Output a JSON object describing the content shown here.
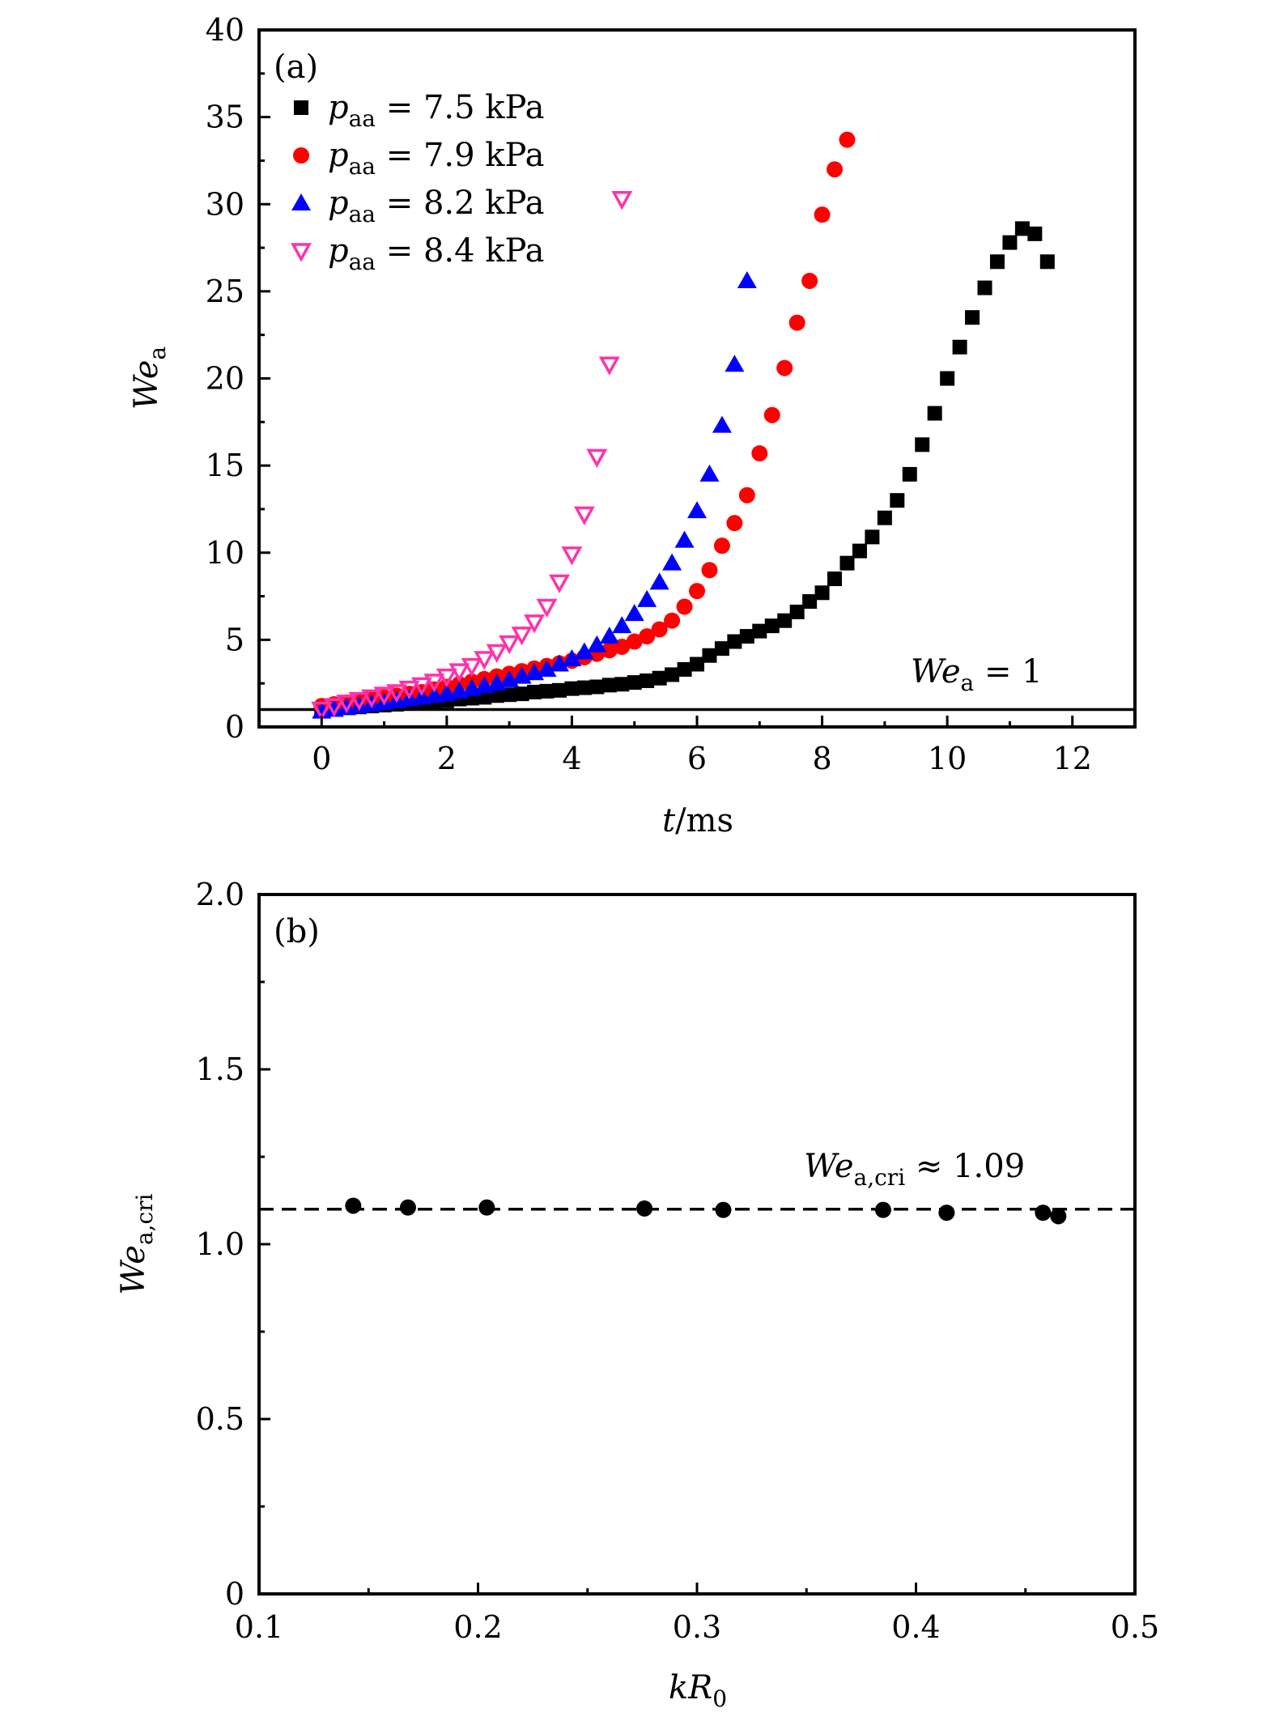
{
  "chart_data": [
    {
      "type": "scatter",
      "panel_label": "(a)",
      "xlabel": {
        "main": "t",
        "rest": "/ms"
      },
      "ylabel": {
        "main": "We",
        "sub": "a"
      },
      "xlim": [
        -1,
        13
      ],
      "ylim": [
        0,
        40
      ],
      "xticks": [
        0,
        2,
        4,
        6,
        8,
        10,
        12
      ],
      "yticks": [
        0,
        5,
        10,
        15,
        20,
        25,
        30,
        35,
        40
      ],
      "legend_position": "top-left",
      "reference_line": {
        "y": 1,
        "label_main": "We",
        "label_sub": "a",
        "label_rest": " = 1"
      },
      "series": [
        {
          "name": "p_aa = 7.5 kPa",
          "sym": "p",
          "sub": "aa",
          "rest": " = 7.5 kPa",
          "marker": "square",
          "color": "#000000",
          "x": [
            0,
            0.2,
            0.4,
            0.6,
            0.8,
            1.0,
            1.2,
            1.4,
            1.6,
            1.8,
            2.0,
            2.2,
            2.4,
            2.6,
            2.8,
            3.0,
            3.2,
            3.4,
            3.6,
            3.8,
            4.0,
            4.2,
            4.4,
            4.6,
            4.8,
            5.0,
            5.2,
            5.4,
            5.6,
            5.8,
            6.0,
            6.2,
            6.4,
            6.6,
            6.8,
            7.0,
            7.2,
            7.4,
            7.6,
            7.8,
            8.0,
            8.2,
            8.4,
            8.6,
            8.8,
            9.0,
            9.2,
            9.4,
            9.6,
            9.8,
            10.0,
            10.2,
            10.4,
            10.6,
            10.8,
            11.0,
            11.2,
            11.4,
            11.6
          ],
          "y": [
            1.0,
            1.05,
            1.1,
            1.15,
            1.2,
            1.25,
            1.3,
            1.35,
            1.4,
            1.45,
            1.5,
            1.6,
            1.65,
            1.7,
            1.8,
            1.85,
            1.9,
            2.0,
            2.05,
            2.1,
            2.2,
            2.25,
            2.3,
            2.4,
            2.45,
            2.55,
            2.65,
            2.8,
            3.0,
            3.3,
            3.6,
            4.1,
            4.5,
            4.9,
            5.2,
            5.5,
            5.8,
            6.1,
            6.6,
            7.2,
            7.7,
            8.5,
            9.4,
            10.1,
            10.9,
            12.0,
            13.0,
            14.5,
            16.2,
            18.0,
            20.0,
            21.8,
            23.5,
            25.2,
            26.7,
            27.8,
            28.6,
            28.3,
            26.7
          ]
        },
        {
          "name": "p_aa = 7.9 kPa",
          "sym": "p",
          "sub": "aa",
          "rest": " = 7.9 kPa",
          "marker": "circle",
          "color": "#ff0000",
          "x": [
            0,
            0.2,
            0.4,
            0.6,
            0.8,
            1.0,
            1.2,
            1.4,
            1.6,
            1.8,
            2.0,
            2.2,
            2.4,
            2.6,
            2.8,
            3.0,
            3.2,
            3.4,
            3.6,
            3.8,
            4.0,
            4.2,
            4.4,
            4.6,
            4.8,
            5.0,
            5.2,
            5.4,
            5.6,
            5.8,
            6.0,
            6.2,
            6.4,
            6.6,
            6.8,
            7.0,
            7.2,
            7.4,
            7.6,
            7.8,
            8.0,
            8.2,
            8.4
          ],
          "y": [
            1.2,
            1.3,
            1.4,
            1.5,
            1.6,
            1.7,
            1.8,
            1.9,
            2.0,
            2.15,
            2.3,
            2.45,
            2.6,
            2.75,
            2.9,
            3.05,
            3.2,
            3.35,
            3.5,
            3.65,
            3.8,
            4.0,
            4.2,
            4.4,
            4.6,
            4.9,
            5.2,
            5.6,
            6.1,
            6.9,
            7.8,
            9.0,
            10.4,
            11.7,
            13.3,
            15.7,
            17.9,
            20.6,
            23.2,
            25.6,
            29.4,
            32.0,
            33.7
          ]
        },
        {
          "name": "p_aa = 8.2 kPa",
          "sym": "p",
          "sub": "aa",
          "rest": " = 8.2 kPa",
          "marker": "triangle-up",
          "color": "#0000ff",
          "x": [
            0,
            0.2,
            0.4,
            0.6,
            0.8,
            1.0,
            1.2,
            1.4,
            1.6,
            1.8,
            2.0,
            2.2,
            2.4,
            2.6,
            2.8,
            3.0,
            3.2,
            3.4,
            3.6,
            3.8,
            4.0,
            4.2,
            4.4,
            4.6,
            4.8,
            5.0,
            5.2,
            5.4,
            5.6,
            5.8,
            6.0,
            6.2,
            6.4,
            6.6,
            6.8
          ],
          "y": [
            0.9,
            1.0,
            1.1,
            1.2,
            1.3,
            1.4,
            1.5,
            1.6,
            1.7,
            1.8,
            1.9,
            2.05,
            2.2,
            2.35,
            2.5,
            2.7,
            2.9,
            3.1,
            3.3,
            3.6,
            3.9,
            4.3,
            4.7,
            5.2,
            5.8,
            6.5,
            7.3,
            8.3,
            9.4,
            10.7,
            12.4,
            14.5,
            17.3,
            20.8,
            25.6
          ]
        },
        {
          "name": "p_aa = 8.4 kPa",
          "sym": "p",
          "sub": "aa",
          "rest": " = 8.4 kPa",
          "marker": "triangle-down-open",
          "color": "#ff33aa",
          "x": [
            0,
            0.2,
            0.4,
            0.6,
            0.8,
            1.0,
            1.2,
            1.4,
            1.6,
            1.8,
            2.0,
            2.2,
            2.4,
            2.6,
            2.8,
            3.0,
            3.2,
            3.4,
            3.6,
            3.8,
            4.0,
            4.2,
            4.4,
            4.6,
            4.8
          ],
          "y": [
            1.0,
            1.2,
            1.4,
            1.55,
            1.7,
            1.85,
            2.0,
            2.2,
            2.4,
            2.6,
            2.9,
            3.2,
            3.5,
            3.9,
            4.3,
            4.8,
            5.3,
            6.0,
            6.9,
            8.3,
            9.9,
            12.2,
            15.5,
            20.8,
            30.3
          ]
        }
      ]
    },
    {
      "type": "scatter",
      "panel_label": "(b)",
      "xlabel": {
        "main": "kR",
        "sub": "0"
      },
      "ylabel": {
        "main": "We",
        "sub": "a,cri"
      },
      "xlim": [
        0.1,
        0.5
      ],
      "ylim": [
        0,
        2.0
      ],
      "xticks": [
        "0.1",
        "0.2",
        "0.3",
        "0.4",
        "0.5"
      ],
      "yticks": [
        "0",
        "0.5",
        "1.0",
        "1.5",
        "2.0"
      ],
      "reference_line": {
        "y": 1.1,
        "style": "dashed",
        "label_main": "We",
        "label_sub": "a,cri",
        "label_rest": " ≈ 1.09"
      },
      "series": [
        {
          "name": "We_a,cri",
          "marker": "circle",
          "color": "#000000",
          "x": [
            0.143,
            0.168,
            0.204,
            0.276,
            0.312,
            0.385,
            0.414,
            0.458,
            0.465
          ],
          "y": [
            1.11,
            1.105,
            1.105,
            1.102,
            1.098,
            1.098,
            1.09,
            1.09,
            1.08
          ]
        }
      ]
    }
  ]
}
